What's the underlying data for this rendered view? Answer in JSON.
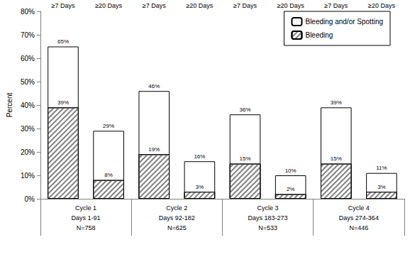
{
  "chart_data": {
    "type": "bar",
    "y_label": "Percent",
    "categories": [
      "≥7 Days",
      "≥20 Days",
      "≥7 Days",
      "≥20 Days",
      "≥7 Days",
      "≥20 Days",
      "≥7 Days",
      "≥20 Days"
    ],
    "groups": [
      [
        "Cycle 1",
        "Days 1-91",
        "N=758"
      ],
      [
        "Cycle 2",
        "Days 92-182",
        "N=625"
      ],
      [
        "Cycle 3",
        "Days 183-273",
        "N=533"
      ],
      [
        "Cycle 4",
        "Days 274-364",
        "N=446"
      ]
    ],
    "series": [
      {
        "name": "Bleeding and/or Spotting",
        "color": "#ffffff",
        "values": [
          65,
          29,
          46,
          16,
          36,
          10,
          39,
          11
        ],
        "value_labels": [
          "65%",
          "29%",
          "46%",
          "16%",
          "36%",
          "10%",
          "39%",
          "11%"
        ]
      },
      {
        "name": "Bleeding",
        "color": "#808080",
        "values": [
          39,
          8,
          19,
          3,
          15,
          2,
          15,
          3
        ],
        "value_labels": [
          "39%",
          "8%",
          "19%",
          "3%",
          "15%",
          "2%",
          "15%",
          "3%"
        ]
      }
    ],
    "ylim": [
      0,
      80
    ],
    "yticks": [
      {
        "value": 0,
        "label": "0%"
      },
      {
        "value": 10,
        "label": "10%"
      },
      {
        "value": 20,
        "label": "20%"
      },
      {
        "value": 30,
        "label": "30%"
      },
      {
        "value": 40,
        "label": "40%"
      },
      {
        "value": 50,
        "label": "50%"
      },
      {
        "value": 60,
        "label": "60%"
      },
      {
        "value": 70,
        "label": "70%"
      },
      {
        "value": 80,
        "label": "80%"
      }
    ],
    "stacked": false,
    "data_labels": true,
    "grid": false,
    "legend": "upper right"
  }
}
